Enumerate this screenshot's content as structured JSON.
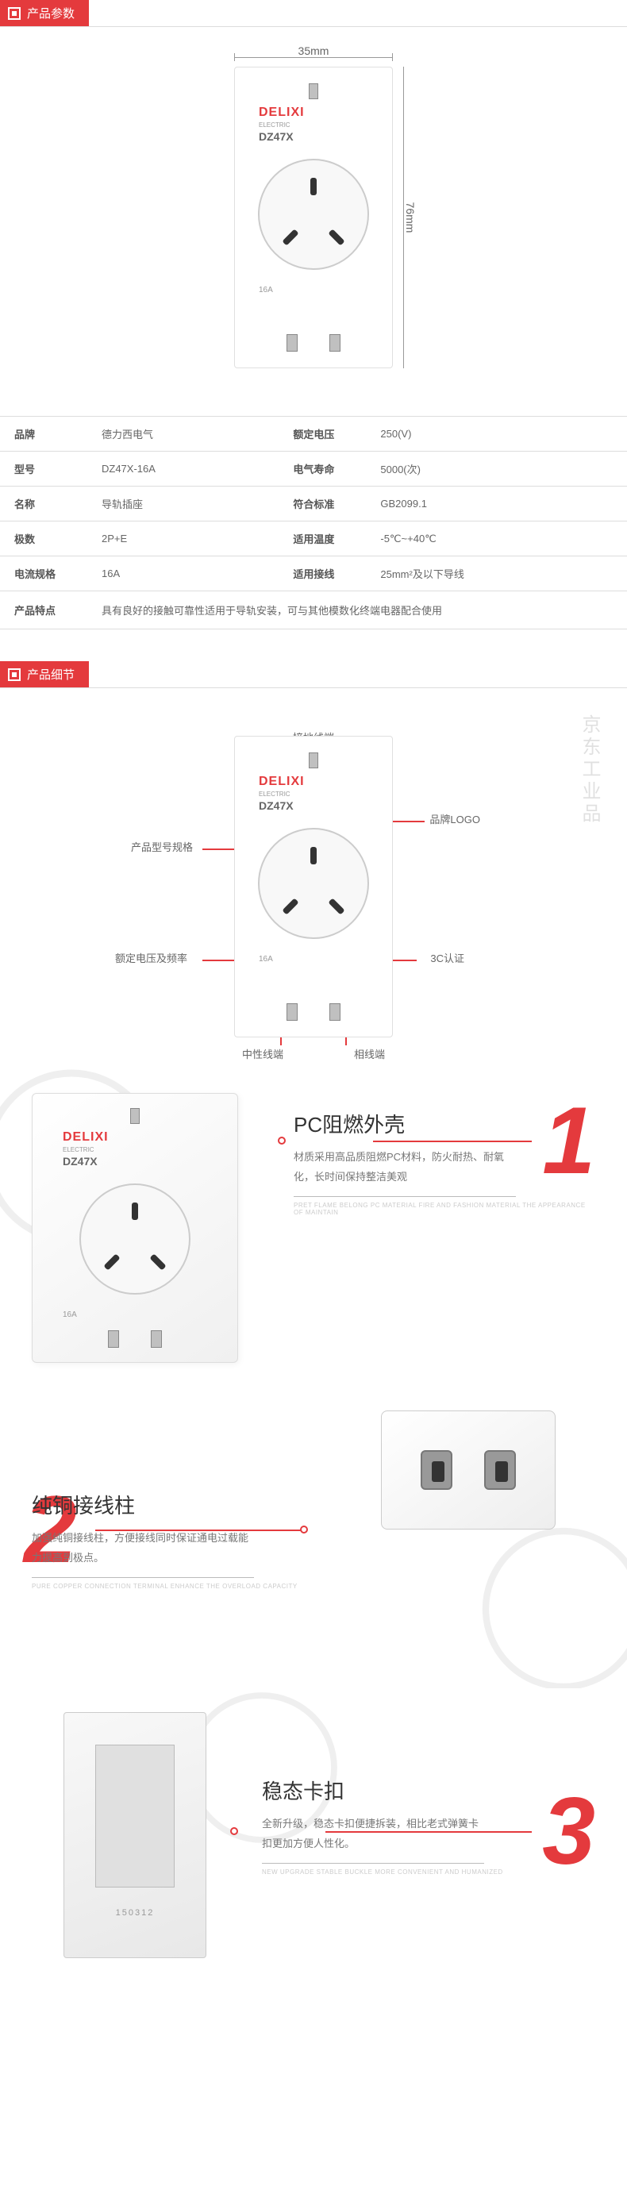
{
  "sections": {
    "params": "产品参数",
    "details": "产品细节"
  },
  "dimensions": {
    "width": "35mm",
    "height": "76mm"
  },
  "product": {
    "brand": "DELIXI",
    "brandSub": "ELECTRIC",
    "model": "DZ47X",
    "rating": "16A"
  },
  "specs": [
    {
      "l1": "品牌",
      "v1": "德力西电气",
      "l2": "额定电压",
      "v2": "250(V)"
    },
    {
      "l1": "型号",
      "v1": "DZ47X-16A",
      "l2": "电气寿命",
      "v2": "5000(次)"
    },
    {
      "l1": "名称",
      "v1": "导轨插座",
      "l2": "符合标准",
      "v2": "GB2099.1"
    },
    {
      "l1": "极数",
      "v1": "2P+E",
      "l2": "适用温度",
      "v2": "-5℃~+40℃"
    },
    {
      "l1": "电流规格",
      "v1": "16A",
      "l2": "适用接线",
      "v2": "25mm²及以下导线"
    }
  ],
  "featureRow": {
    "label": "产品特点",
    "value": "具有良好的接触可靠性适用于导轨安装，可与其他模数化终端电器配合使用"
  },
  "callouts": {
    "ground": "接地线端",
    "modelSpec": "产品型号规格",
    "brandLogo": "品牌LOGO",
    "voltFreq": "额定电压及频率",
    "ccc": "3C认证",
    "neutral": "中性线端",
    "phase": "相线端"
  },
  "features": [
    {
      "title": "PC阻燃外壳",
      "desc": "材质采用高品质阻燃PC材料，防火耐热、耐氧化，长时间保持整洁美观",
      "sub": "PRET FLAME BELONG PC MATERIAL FIRE AND FASHION MATERIAL THE APPEARANCE OF MAINTAIN"
    },
    {
      "title": "纯铜接线柱",
      "desc": "加强纯铜接线柱，方便接线同时保证通电过载能力提高到极点。",
      "sub": "PURE COPPER CONNECTION TERMINAL ENHANCE THE OVERLOAD CAPACITY"
    },
    {
      "title": "稳态卡扣",
      "desc": "全新升级，稳态卡扣便捷拆装，相比老式弹簧卡扣更加方便人性化。",
      "sub": "NEW UPGRADE STABLE BUCKLE MORE CONVENIENT AND HUMANIZED"
    }
  ],
  "rearLabel": "150312",
  "watermark": "京东工业品",
  "colors": {
    "accent": "#e43a3d",
    "text": "#666",
    "border": "#ddd"
  }
}
